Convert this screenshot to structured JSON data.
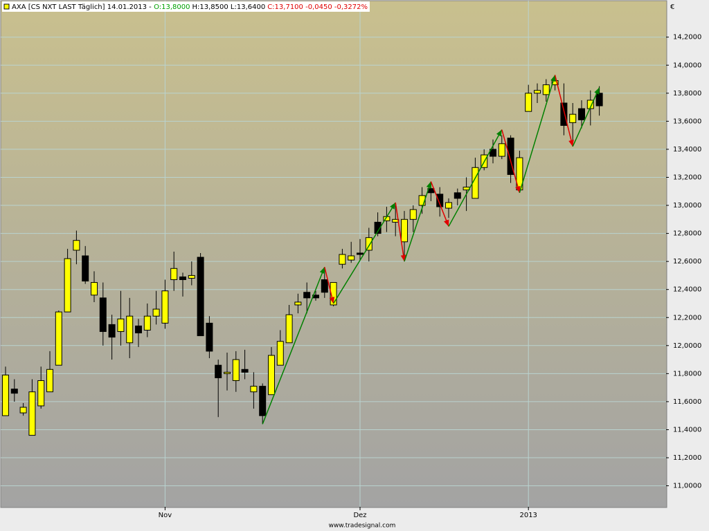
{
  "chart_data": {
    "type": "candlestick",
    "title_parts": [
      {
        "text": "AXA [CS NXT LAST Täglich] 14.01.2013 -",
        "color": "#000000"
      },
      {
        "text": "O:13,8000",
        "color": "#00a000"
      },
      {
        "text": "H:13,8500 L:13,6400",
        "color": "#000000"
      },
      {
        "text": "C:13,7100 -0,0450 -0,3272%",
        "color": "#e00000"
      }
    ],
    "y_label": "€",
    "source": "www.tradesignal.com",
    "categories": [
      null,
      null,
      null,
      null,
      null,
      null,
      null,
      null,
      null,
      null,
      null,
      null,
      null,
      null,
      null,
      null,
      null,
      null,
      "Nov",
      null,
      null,
      null,
      null,
      null,
      null,
      null,
      null,
      null,
      null,
      null,
      null,
      null,
      null,
      null,
      null,
      null,
      null,
      null,
      null,
      null,
      "Dez",
      null,
      null,
      null,
      null,
      null,
      null,
      null,
      null,
      null,
      null,
      null,
      null,
      null,
      null,
      null,
      null,
      null,
      null,
      "2013",
      null,
      null,
      null,
      null,
      null,
      null,
      null,
      null
    ],
    "open": [
      11.5,
      11.69,
      11.52,
      11.36,
      11.57,
      11.67,
      11.86,
      12.24,
      12.68,
      12.64,
      12.36,
      12.34,
      12.15,
      12.1,
      12.02,
      12.14,
      12.11,
      12.21,
      12.16,
      12.47,
      12.49,
      12.48,
      12.63,
      12.16,
      11.86,
      11.8,
      11.75,
      11.83,
      11.67,
      11.71,
      11.65,
      11.86,
      12.02,
      12.29,
      12.38,
      12.36,
      12.47,
      12.29,
      12.58,
      12.61,
      12.66,
      12.68,
      12.88,
      12.89,
      12.88,
      12.74,
      12.9,
      13.0,
      13.12,
      13.08,
      12.98,
      13.09,
      13.11,
      13.05,
      13.27,
      13.4,
      13.35,
      13.48,
      13.11,
      13.67,
      13.8,
      13.79,
      13.86,
      13.73,
      13.59,
      13.69,
      13.69,
      13.8
    ],
    "high": [
      11.85,
      11.76,
      11.59,
      11.76,
      11.85,
      11.96,
      12.25,
      12.69,
      12.82,
      12.71,
      12.53,
      12.45,
      12.22,
      12.39,
      12.34,
      12.19,
      12.3,
      12.39,
      12.47,
      12.67,
      12.52,
      12.6,
      12.66,
      12.21,
      11.9,
      11.95,
      11.96,
      11.97,
      11.81,
      11.73,
      11.99,
      12.11,
      12.29,
      12.37,
      12.45,
      12.39,
      12.54,
      12.45,
      12.69,
      12.74,
      12.76,
      12.84,
      12.95,
      12.99,
      13.0,
      12.96,
      13.0,
      13.13,
      13.17,
      13.13,
      13.05,
      13.12,
      13.2,
      13.34,
      13.4,
      13.47,
      13.5,
      13.5,
      13.39,
      13.86,
      13.87,
      13.9,
      13.92,
      13.87,
      13.73,
      13.75,
      13.82,
      13.85
    ],
    "low": [
      11.5,
      11.6,
      11.5,
      11.36,
      11.55,
      11.67,
      11.86,
      12.24,
      12.58,
      12.44,
      12.31,
      12.0,
      11.9,
      12.0,
      11.91,
      11.99,
      12.06,
      12.15,
      12.12,
      12.39,
      12.35,
      12.43,
      12.07,
      11.91,
      11.49,
      11.68,
      11.67,
      11.76,
      11.55,
      11.44,
      11.65,
      11.86,
      12.02,
      12.23,
      12.23,
      12.32,
      12.34,
      12.28,
      12.55,
      12.59,
      12.61,
      12.6,
      12.78,
      12.81,
      12.78,
      12.63,
      12.81,
      12.94,
      13.03,
      12.92,
      12.91,
      13.0,
      12.96,
      13.05,
      13.25,
      13.3,
      13.33,
      13.16,
      13.09,
      13.67,
      13.73,
      13.74,
      13.82,
      13.5,
      13.45,
      13.55,
      13.57,
      13.64
    ],
    "close": [
      11.79,
      11.66,
      11.56,
      11.67,
      11.75,
      11.83,
      12.24,
      12.62,
      12.75,
      12.46,
      12.45,
      12.1,
      12.06,
      12.19,
      12.21,
      12.09,
      12.21,
      12.26,
      12.39,
      12.55,
      12.47,
      12.5,
      12.07,
      11.96,
      11.77,
      11.81,
      11.9,
      11.81,
      11.71,
      11.5,
      11.93,
      12.03,
      12.22,
      12.31,
      12.34,
      12.34,
      12.38,
      12.45,
      12.65,
      12.64,
      12.65,
      12.77,
      12.8,
      12.92,
      12.9,
      12.9,
      12.97,
      13.07,
      13.09,
      12.99,
      13.02,
      13.05,
      13.13,
      13.27,
      13.36,
      13.35,
      13.44,
      13.22,
      13.34,
      13.8,
      13.82,
      13.86,
      13.89,
      13.57,
      13.65,
      13.61,
      13.75,
      13.71
    ],
    "up_color": "#ffff00",
    "down_color": "#000000",
    "zigzag": {
      "x": [
        29,
        36,
        37,
        44,
        45,
        48,
        50,
        56,
        58,
        62,
        64,
        67
      ],
      "values": [
        11.44,
        12.56,
        12.3,
        13.02,
        12.6,
        13.17,
        12.85,
        13.54,
        13.09,
        13.93,
        13.42,
        13.84
      ],
      "up_color": "#008000",
      "down_color": "#e00000"
    },
    "ylim": [
      10.85,
      14.45
    ],
    "yticks": [
      {
        "value": 11.0,
        "label": "11,0000"
      },
      {
        "value": 11.2,
        "label": "11,2000"
      },
      {
        "value": 11.4,
        "label": "11,4000"
      },
      {
        "value": 11.6,
        "label": "11,6000"
      },
      {
        "value": 11.8,
        "label": "11,8000"
      },
      {
        "value": 12.0,
        "label": "12,0000"
      },
      {
        "value": 12.2,
        "label": "12,2000"
      },
      {
        "value": 12.4,
        "label": "12,4000"
      },
      {
        "value": 12.6,
        "label": "12,6000"
      },
      {
        "value": 12.8,
        "label": "12,8000"
      },
      {
        "value": 13.0,
        "label": "13,0000"
      },
      {
        "value": 13.2,
        "label": "13,2000"
      },
      {
        "value": 13.4,
        "label": "13,4000"
      },
      {
        "value": 13.6,
        "label": "13,6000"
      },
      {
        "value": 13.8,
        "label": "13,8000"
      },
      {
        "value": 14.0,
        "label": "14,0000"
      },
      {
        "value": 14.2,
        "label": "14,2000"
      }
    ],
    "grid": true
  }
}
